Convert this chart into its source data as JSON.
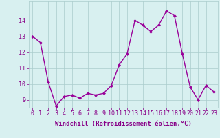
{
  "x": [
    0,
    1,
    2,
    3,
    4,
    5,
    6,
    7,
    8,
    9,
    10,
    11,
    12,
    13,
    14,
    15,
    16,
    17,
    18,
    19,
    20,
    21,
    22,
    23
  ],
  "y": [
    13.0,
    12.6,
    10.1,
    8.6,
    9.2,
    9.3,
    9.1,
    9.4,
    9.3,
    9.4,
    9.9,
    11.2,
    11.9,
    14.0,
    13.7,
    13.3,
    13.7,
    14.6,
    14.3,
    11.9,
    9.8,
    9.0,
    9.9,
    9.5
  ],
  "line_color": "#990099",
  "marker": "D",
  "marker_size": 2.0,
  "linewidth": 1.0,
  "bg_color": "#d8f0f0",
  "grid_color": "#aacccc",
  "xlabel": "Windchill (Refroidissement éolien,°C)",
  "xlabel_fontsize": 6.5,
  "tick_fontsize": 6.0,
  "ylim": [
    8.5,
    15.2
  ],
  "xlim": [
    -0.5,
    23.5
  ],
  "yticks": [
    9,
    10,
    11,
    12,
    13,
    14
  ],
  "xticks": [
    0,
    1,
    2,
    3,
    4,
    5,
    6,
    7,
    8,
    9,
    10,
    11,
    12,
    13,
    14,
    15,
    16,
    17,
    18,
    19,
    20,
    21,
    22,
    23
  ]
}
